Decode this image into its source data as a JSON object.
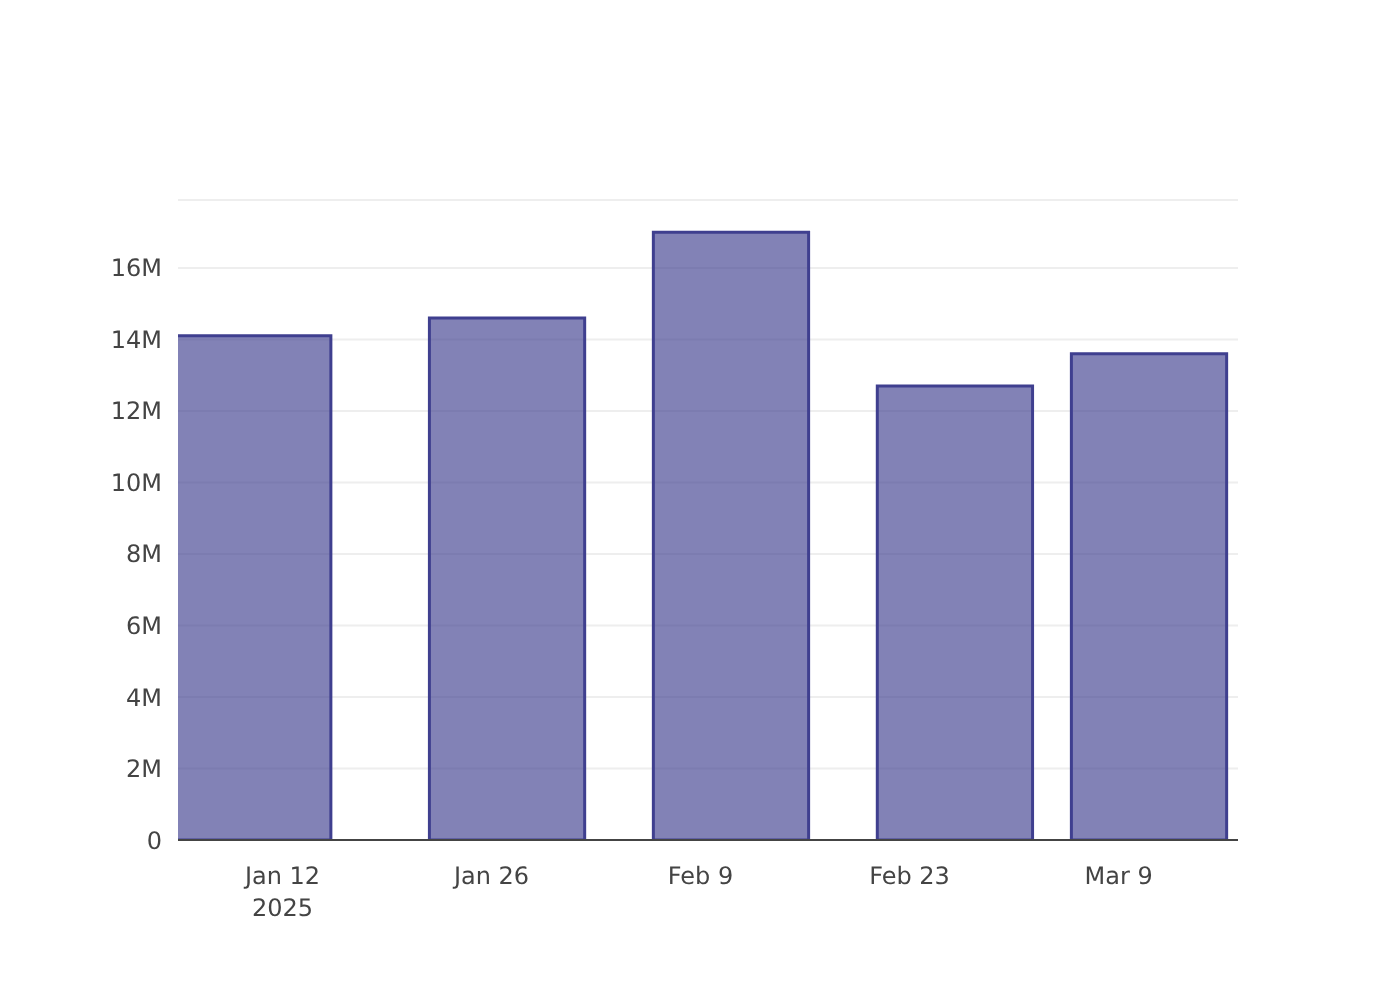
{
  "chart_data": {
    "type": "bar",
    "x": [
      "2025-01-10",
      "2025-01-27",
      "2025-02-11",
      "2025-02-26",
      "2025-03-11"
    ],
    "series": [
      {
        "color": "#3f3f8f",
        "values": [
          14100000,
          14600000,
          17000000,
          12700000,
          13600000
        ]
      }
    ],
    "xlim": [
      "2025-01-05",
      "2025-03-17"
    ],
    "xticks": [
      {
        "value": "2025-01-12",
        "label": "Jan 12\n2025"
      },
      {
        "value": "2025-01-26",
        "label": "Jan 26"
      },
      {
        "value": "2025-02-09",
        "label": "Feb 9"
      },
      {
        "value": "2025-02-23",
        "label": "Feb 23"
      },
      {
        "value": "2025-03-09",
        "label": "Mar 9"
      }
    ],
    "ylim": [
      0,
      17900000
    ],
    "yticks": [
      0,
      {
        "value": 2000000,
        "label": "2M"
      },
      {
        "value": 4000000,
        "label": "4M"
      },
      {
        "value": 6000000,
        "label": "6M"
      },
      {
        "value": 8000000,
        "label": "8M"
      },
      {
        "value": 10000000,
        "label": "10M"
      },
      {
        "value": 12000000,
        "label": "12M"
      },
      {
        "value": 14000000,
        "label": "14M"
      },
      {
        "value": 16000000,
        "label": "16M"
      }
    ],
    "grid": "y"
  }
}
